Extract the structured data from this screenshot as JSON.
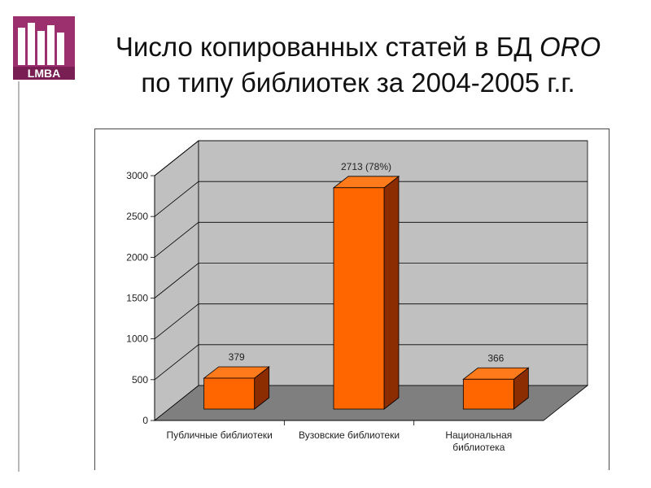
{
  "slide": {
    "title_line1_plain": "Число копированных статей в БД ",
    "title_line1_italic": "ORO",
    "title_line2": "по типу библиотек за 2004-2005 г.г.",
    "logo_text": "LMBA"
  },
  "chart_data": {
    "type": "bar",
    "categories": [
      "Публичные библиотеки",
      "Вузовские библиотеки",
      "Национальная библиотека"
    ],
    "category_lines": [
      [
        "Публичные библиотеки"
      ],
      [
        "Вузовские библиотеки"
      ],
      [
        "Национальная",
        "библиотека"
      ]
    ],
    "values": [
      379,
      2713,
      366
    ],
    "data_labels": [
      "379",
      "2713 (78%)",
      "366"
    ],
    "yticks": [
      "0",
      "500",
      "1000",
      "1500",
      "2000",
      "2500",
      "3000"
    ],
    "ylim": [
      0,
      3000
    ],
    "grid": true,
    "legend": "none",
    "colors": {
      "bar_front": "#ff6600",
      "bar_side": "#8b2d00",
      "bar_top": "#ff7a1a",
      "wall": "#c0c0c0",
      "floor": "#7f7f7f",
      "gridline": "#000000"
    }
  }
}
